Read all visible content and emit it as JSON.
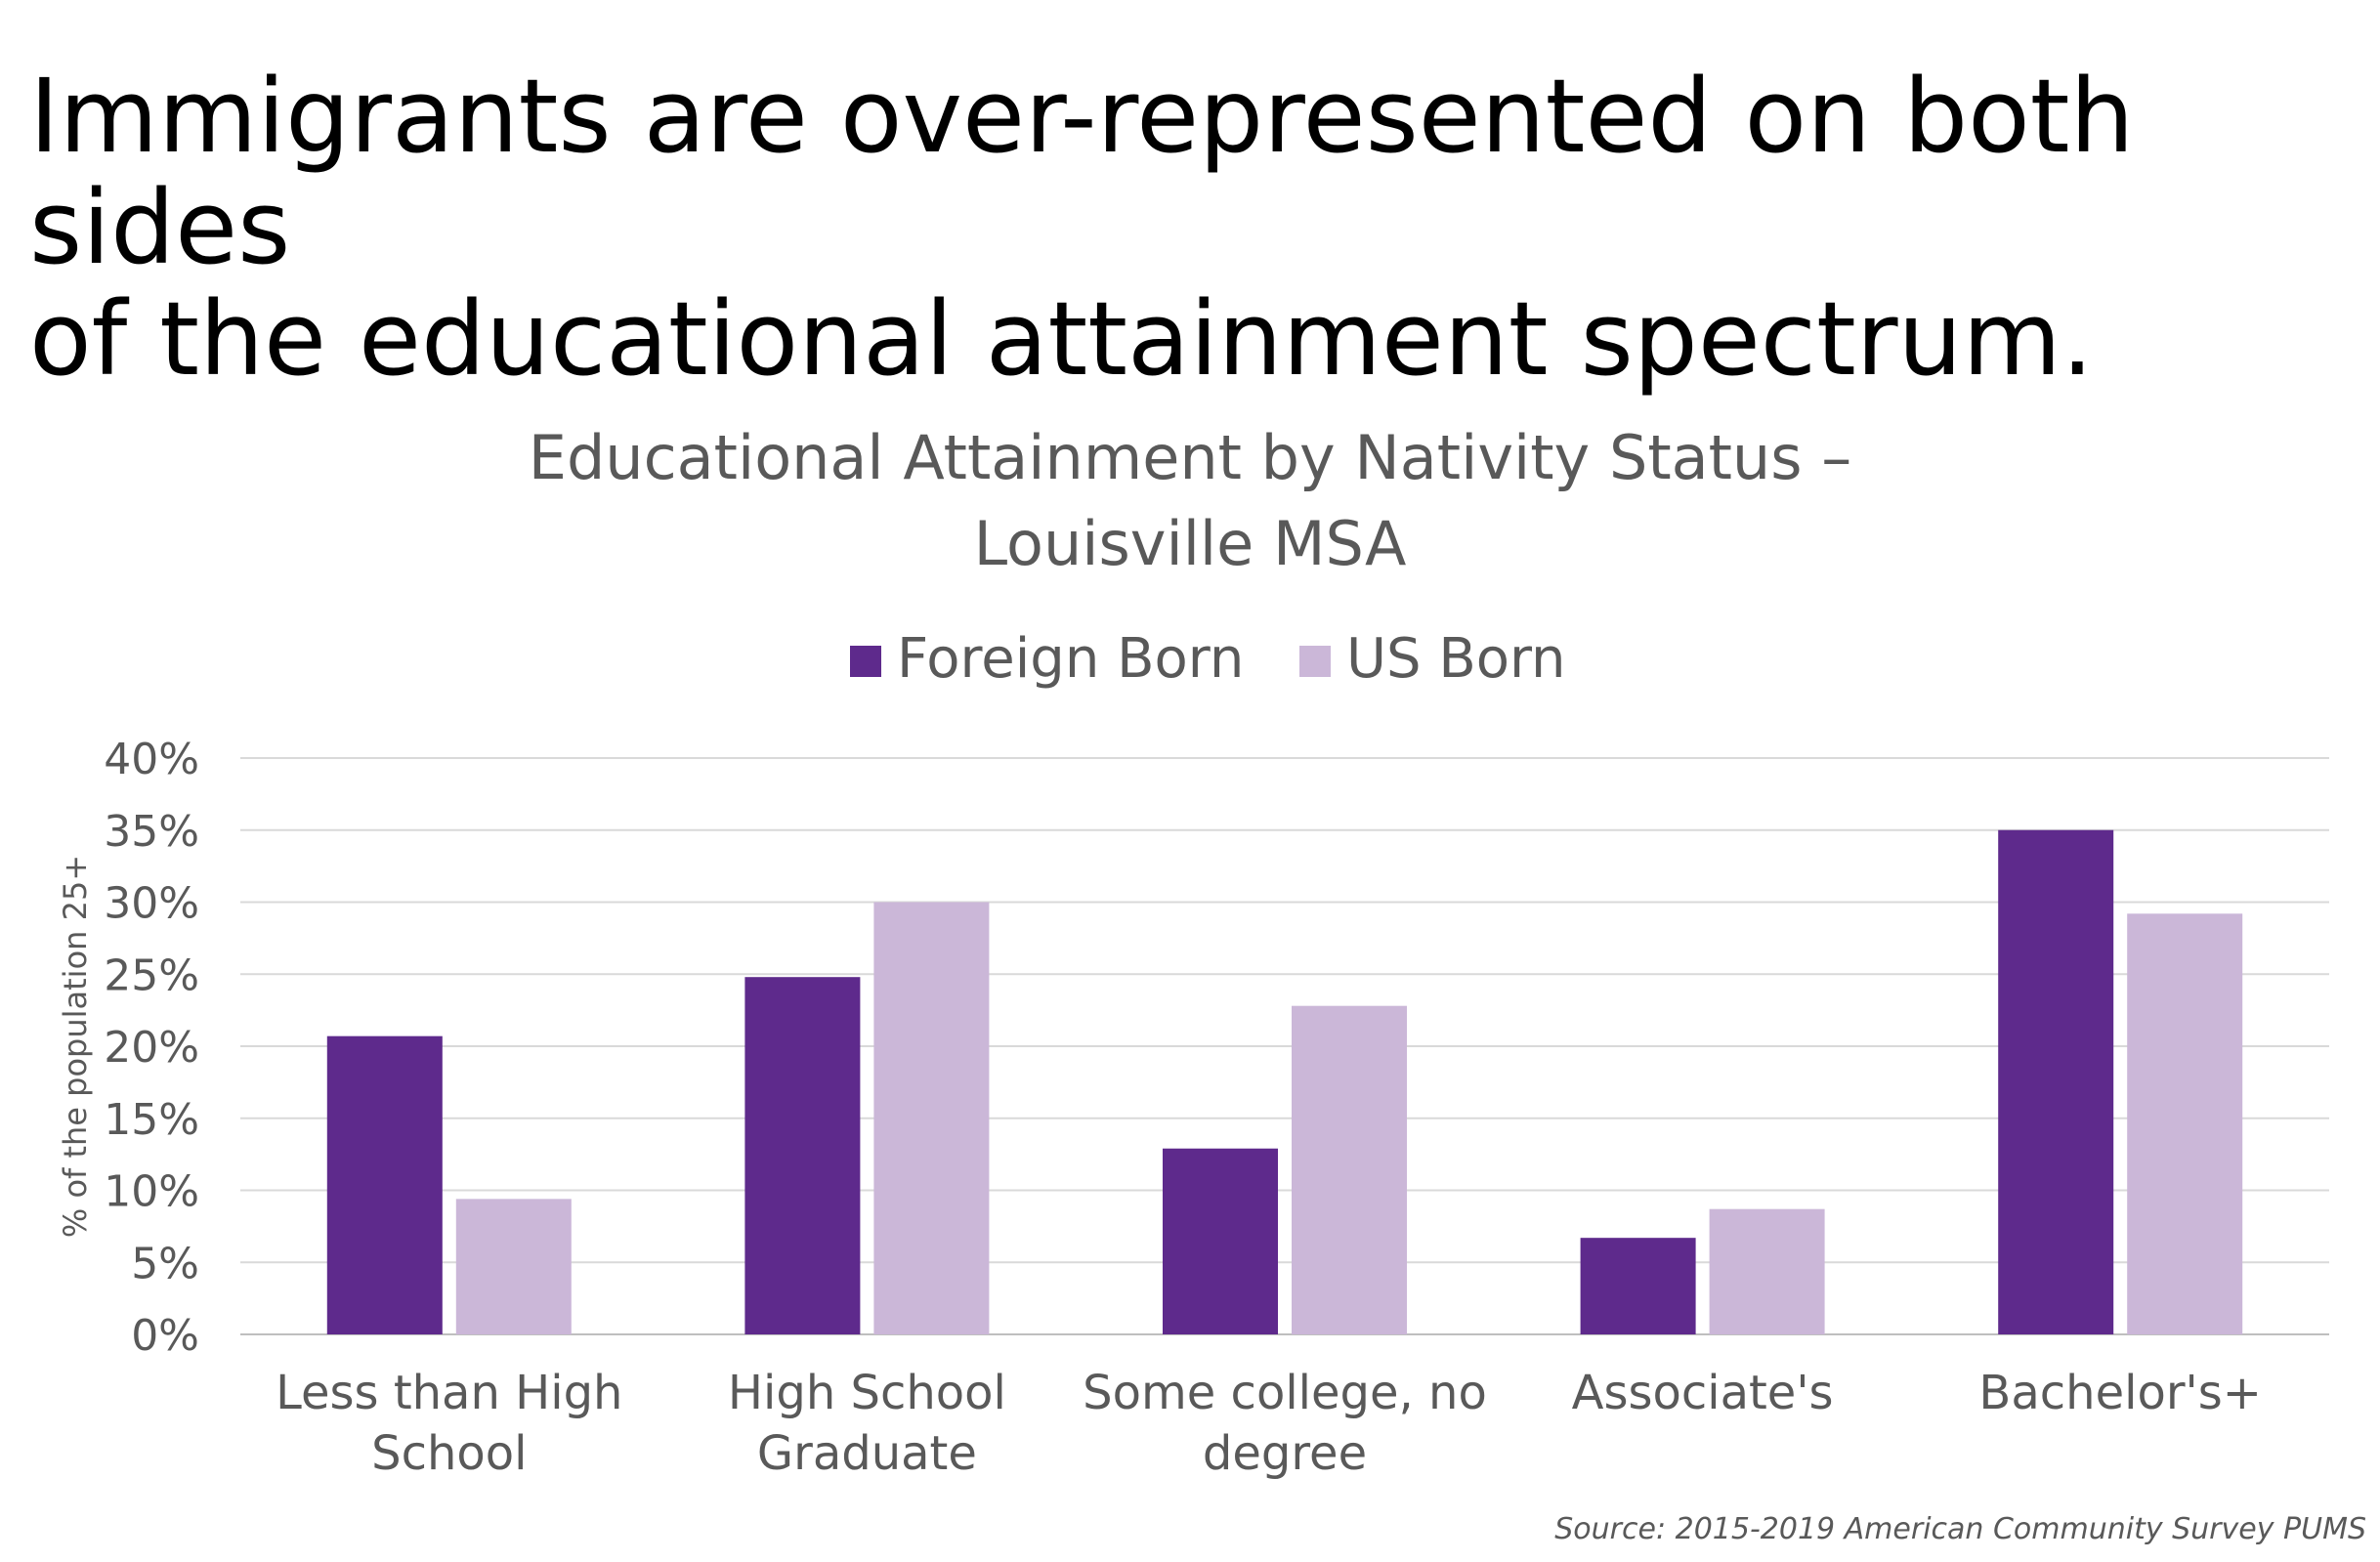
{
  "headline": "Immigrants are over-represented on both sides\nof the educational attainment spectrum.",
  "source": "Source: 2015-2019 American Community Survey PUMS",
  "colors": {
    "foreign": "#5e2a8c",
    "us": "#cbb7d8",
    "grid": "#d9d9d9",
    "text": "#595959"
  },
  "chart_data": {
    "type": "bar",
    "title": [
      "Educational Attainment by Nativity Status –",
      "Louisville MSA"
    ],
    "ylabel": "% of the population 25+",
    "xlabel": "",
    "ylim": [
      0,
      40
    ],
    "yticks": [
      "0%",
      "5%",
      "10%",
      "15%",
      "20%",
      "25%",
      "30%",
      "35%",
      "40%"
    ],
    "grid": true,
    "legend_position": "top",
    "categories": [
      [
        "Less than High",
        "School"
      ],
      [
        "High School",
        "Graduate"
      ],
      [
        "Some college, no",
        "degree"
      ],
      [
        "Associate's"
      ],
      [
        "Bachelor's+"
      ]
    ],
    "series": [
      {
        "name": "Foreign Born",
        "color": "#5e2a8c",
        "values": [
          20.7,
          24.8,
          12.9,
          6.7,
          35.0
        ]
      },
      {
        "name": "US Born",
        "color": "#cbb7d8",
        "values": [
          9.4,
          30.0,
          22.8,
          8.7,
          29.2
        ]
      }
    ]
  }
}
